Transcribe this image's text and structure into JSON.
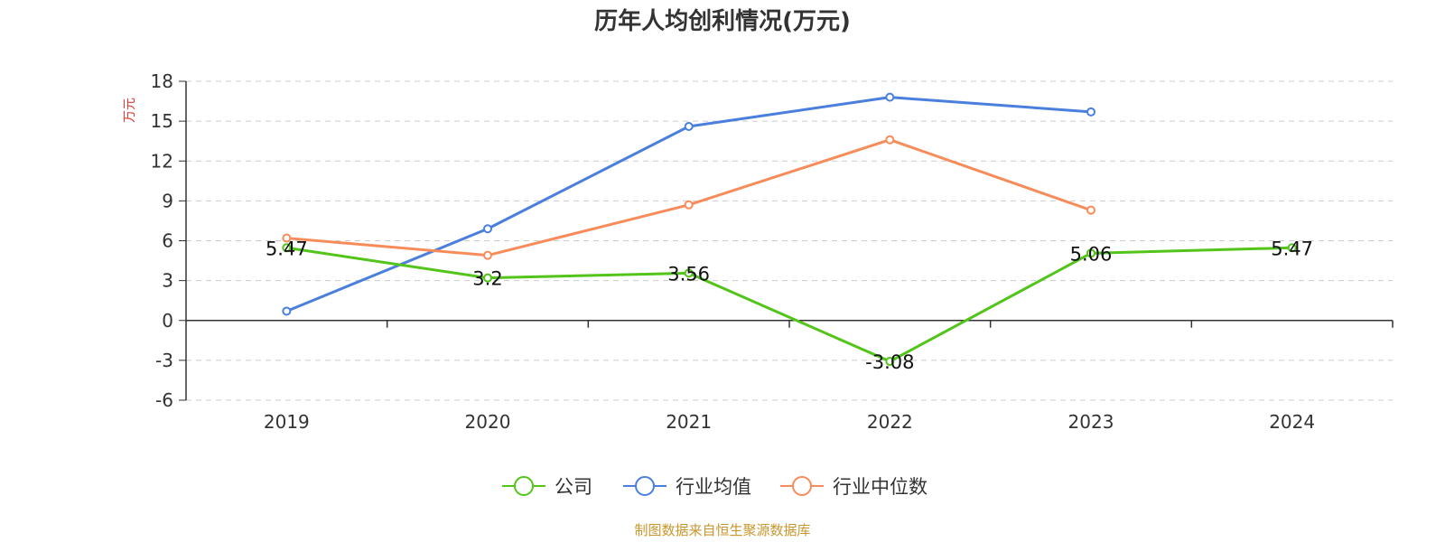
{
  "chart_data": {
    "type": "line",
    "title": "历年人均创利情况(万元)",
    "ylabel": "万元",
    "xlabel": "",
    "categories": [
      "2019",
      "2020",
      "2021",
      "2022",
      "2023",
      "2024"
    ],
    "ylim": [
      -6,
      18
    ],
    "yticks": [
      18,
      15,
      12,
      9,
      6,
      3,
      0,
      -3,
      -6
    ],
    "grid": true,
    "legend_position": "bottom-center",
    "series": [
      {
        "name": "公司",
        "color": "#52c41a",
        "values": [
          5.47,
          3.2,
          3.56,
          -3.08,
          5.06,
          5.47
        ],
        "labels": [
          "5.47",
          "3.2",
          "3.56",
          "-3.08",
          "5.06",
          "5.47"
        ]
      },
      {
        "name": "行业均值",
        "color": "#4a7fdd",
        "values": [
          0.7,
          6.9,
          14.6,
          16.8,
          15.7,
          null
        ]
      },
      {
        "name": "行业中位数",
        "color": "#f78c5a",
        "values": [
          6.2,
          4.9,
          8.7,
          13.6,
          8.3,
          null
        ]
      }
    ],
    "source": "制图数据来自恒生聚源数据库"
  }
}
